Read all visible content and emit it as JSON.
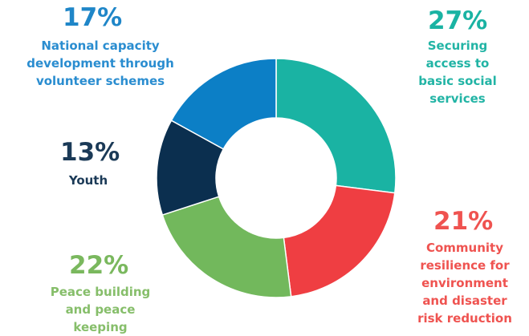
{
  "chart_data": {
    "type": "pie",
    "title": "",
    "categories": [
      "Securing access to basic social services",
      "Community resilience for environment and disaster risk reduction",
      "Peace building and peace keeping",
      "Youth",
      "National capacity development through volunteer schemes"
    ],
    "values": [
      27,
      21,
      22,
      13,
      17
    ],
    "colors": [
      "#1ab3a3",
      "#ef3e42",
      "#72b85c",
      "#0b2f4f",
      "#0c7fc6"
    ],
    "labels": [
      {
        "percent": "27%",
        "text": "Securing\naccess to\nbasic social\nservices",
        "color": "#1ab3a3",
        "text_color": "#22b4a5"
      },
      {
        "percent": "21%",
        "text": "Community\nresilience for\nenvironment\nand disaster\nrisk reduction",
        "color": "#ef5350",
        "text_color": "#ef5350"
      },
      {
        "percent": "22%",
        "text": "Peace building\nand peace\nkeeping",
        "color": "#7ab85e",
        "text_color": "#86be6a"
      },
      {
        "percent": "13%",
        "text": "Youth",
        "color": "#1b3a57",
        "text_color": "#1b3a57"
      },
      {
        "percent": "17%",
        "text": "National capacity\ndevelopment through\nvolunteer schemes",
        "color": "#1f86c8",
        "text_color": "#2a8dd0"
      }
    ],
    "style": "donut",
    "legend": "none"
  }
}
